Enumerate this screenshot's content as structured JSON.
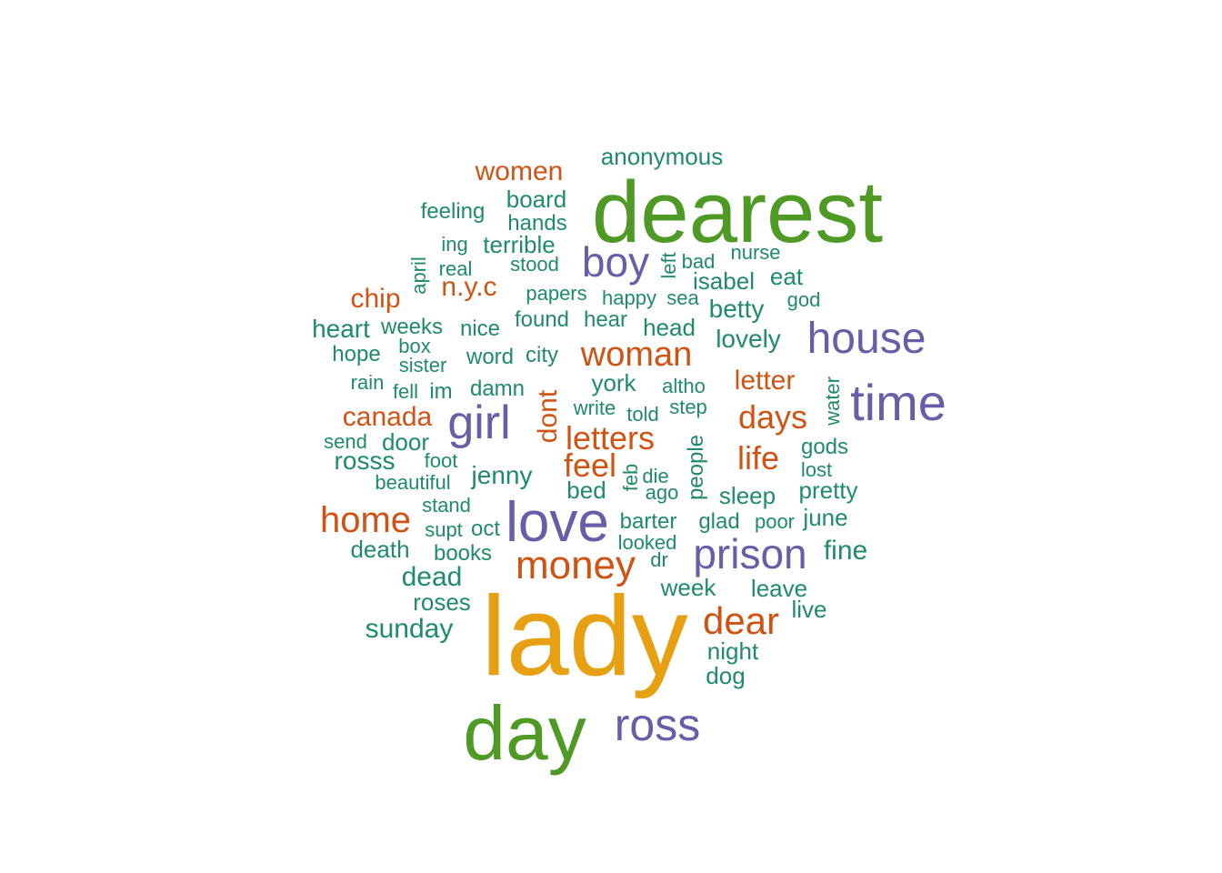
{
  "palette": {
    "orange": "#E6A012",
    "green": "#4E9A25",
    "purple": "#6A5CA8",
    "red": "#D05314",
    "teal": "#1F8A6E"
  },
  "words": [
    {
      "text": "lady",
      "color": "orange"
    },
    {
      "text": "dearest",
      "color": "green"
    },
    {
      "text": "day",
      "color": "green"
    },
    {
      "text": "ross",
      "color": "purple"
    },
    {
      "text": "love",
      "color": "purple"
    },
    {
      "text": "prison",
      "color": "purple"
    },
    {
      "text": "time",
      "color": "purple"
    },
    {
      "text": "house",
      "color": "purple"
    },
    {
      "text": "girl",
      "color": "purple"
    },
    {
      "text": "boy",
      "color": "purple"
    },
    {
      "text": "money",
      "color": "red"
    },
    {
      "text": "dear",
      "color": "red"
    },
    {
      "text": "home",
      "color": "red"
    },
    {
      "text": "woman",
      "color": "red"
    },
    {
      "text": "letters",
      "color": "red"
    },
    {
      "text": "days",
      "color": "red"
    },
    {
      "text": "life",
      "color": "red"
    },
    {
      "text": "feel",
      "color": "red"
    },
    {
      "text": "letter",
      "color": "red"
    },
    {
      "text": "canada",
      "color": "red"
    },
    {
      "text": "dont",
      "color": "red"
    },
    {
      "text": "women",
      "color": "red"
    },
    {
      "text": "n.y.c",
      "color": "red"
    },
    {
      "text": "chip",
      "color": "red"
    },
    {
      "text": "anonymous",
      "color": "teal"
    },
    {
      "text": "board",
      "color": "teal"
    },
    {
      "text": "feeling",
      "color": "teal"
    },
    {
      "text": "hands",
      "color": "teal"
    },
    {
      "text": "ing",
      "color": "teal"
    },
    {
      "text": "terrible",
      "color": "teal"
    },
    {
      "text": "april",
      "color": "teal"
    },
    {
      "text": "real",
      "color": "teal"
    },
    {
      "text": "stood",
      "color": "teal"
    },
    {
      "text": "left",
      "color": "teal"
    },
    {
      "text": "bad",
      "color": "teal"
    },
    {
      "text": "nurse",
      "color": "teal"
    },
    {
      "text": "isabel",
      "color": "teal"
    },
    {
      "text": "eat",
      "color": "teal"
    },
    {
      "text": "papers",
      "color": "teal"
    },
    {
      "text": "happy",
      "color": "teal"
    },
    {
      "text": "sea",
      "color": "teal"
    },
    {
      "text": "god",
      "color": "teal"
    },
    {
      "text": "betty",
      "color": "teal"
    },
    {
      "text": "heart",
      "color": "teal"
    },
    {
      "text": "weeks",
      "color": "teal"
    },
    {
      "text": "nice",
      "color": "teal"
    },
    {
      "text": "found",
      "color": "teal"
    },
    {
      "text": "hear",
      "color": "teal"
    },
    {
      "text": "head",
      "color": "teal"
    },
    {
      "text": "lovely",
      "color": "teal"
    },
    {
      "text": "hope",
      "color": "teal"
    },
    {
      "text": "box",
      "color": "teal"
    },
    {
      "text": "sister",
      "color": "teal"
    },
    {
      "text": "word",
      "color": "teal"
    },
    {
      "text": "city",
      "color": "teal"
    },
    {
      "text": "rain",
      "color": "teal"
    },
    {
      "text": "fell",
      "color": "teal"
    },
    {
      "text": "im",
      "color": "teal"
    },
    {
      "text": "damn",
      "color": "teal"
    },
    {
      "text": "york",
      "color": "teal"
    },
    {
      "text": "altho",
      "color": "teal"
    },
    {
      "text": "water",
      "color": "teal"
    },
    {
      "text": "write",
      "color": "teal"
    },
    {
      "text": "told",
      "color": "teal"
    },
    {
      "text": "step",
      "color": "teal"
    },
    {
      "text": "send",
      "color": "teal"
    },
    {
      "text": "door",
      "color": "teal"
    },
    {
      "text": "people",
      "color": "teal"
    },
    {
      "text": "gods",
      "color": "teal"
    },
    {
      "text": "rosss",
      "color": "teal"
    },
    {
      "text": "foot",
      "color": "teal"
    },
    {
      "text": "jenny",
      "color": "teal"
    },
    {
      "text": "feb",
      "color": "teal"
    },
    {
      "text": "die",
      "color": "teal"
    },
    {
      "text": "lost",
      "color": "teal"
    },
    {
      "text": "beautiful",
      "color": "teal"
    },
    {
      "text": "bed",
      "color": "teal"
    },
    {
      "text": "ago",
      "color": "teal"
    },
    {
      "text": "sleep",
      "color": "teal"
    },
    {
      "text": "pretty",
      "color": "teal"
    },
    {
      "text": "stand",
      "color": "teal"
    },
    {
      "text": "barter",
      "color": "teal"
    },
    {
      "text": "glad",
      "color": "teal"
    },
    {
      "text": "poor",
      "color": "teal"
    },
    {
      "text": "june",
      "color": "teal"
    },
    {
      "text": "supt",
      "color": "teal"
    },
    {
      "text": "oct",
      "color": "teal"
    },
    {
      "text": "looked",
      "color": "teal"
    },
    {
      "text": "death",
      "color": "teal"
    },
    {
      "text": "books",
      "color": "teal"
    },
    {
      "text": "dr",
      "color": "teal"
    },
    {
      "text": "fine",
      "color": "teal"
    },
    {
      "text": "dead",
      "color": "teal"
    },
    {
      "text": "week",
      "color": "teal"
    },
    {
      "text": "leave",
      "color": "teal"
    },
    {
      "text": "roses",
      "color": "teal"
    },
    {
      "text": "live",
      "color": "teal"
    },
    {
      "text": "sunday",
      "color": "teal"
    },
    {
      "text": "night",
      "color": "teal"
    },
    {
      "text": "dog",
      "color": "teal"
    }
  ]
}
